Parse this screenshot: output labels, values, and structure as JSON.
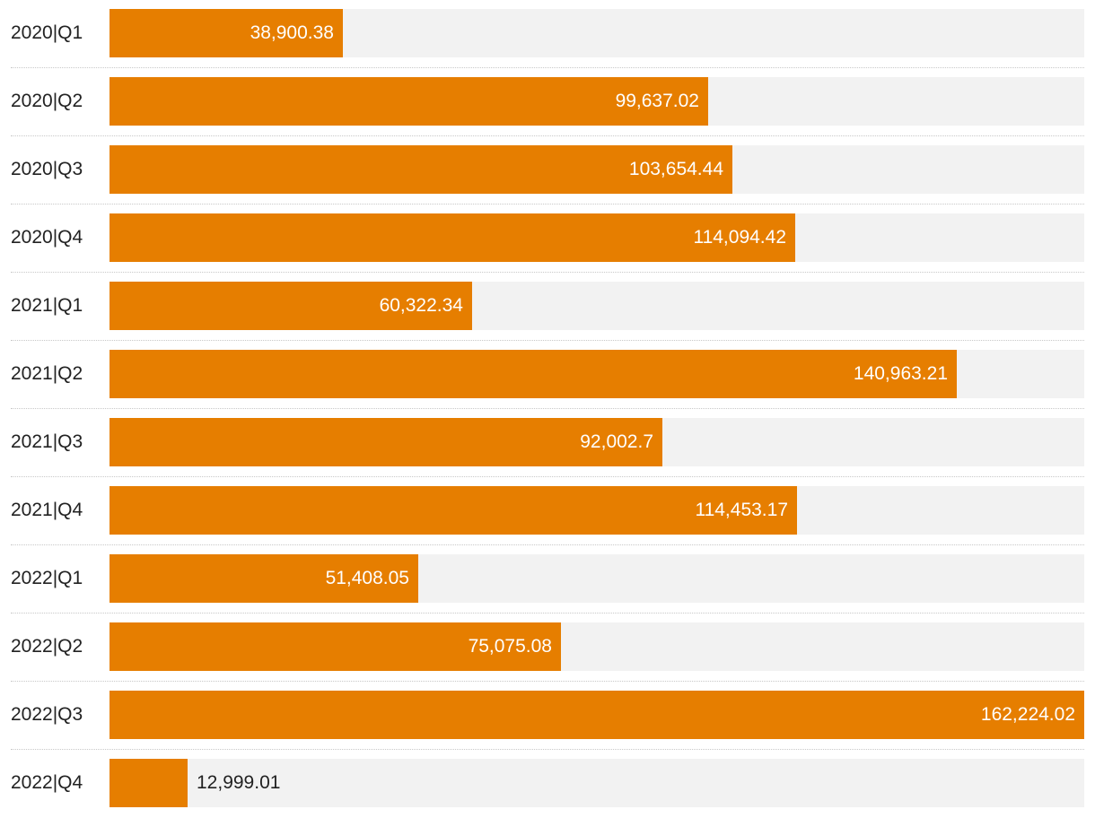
{
  "chart_data": {
    "type": "bar",
    "orientation": "horizontal",
    "categories": [
      "2020|Q1",
      "2020|Q2",
      "2020|Q3",
      "2020|Q4",
      "2021|Q1",
      "2021|Q2",
      "2021|Q3",
      "2021|Q4",
      "2022|Q1",
      "2022|Q2",
      "2022|Q3",
      "2022|Q4"
    ],
    "values": [
      38900.38,
      99637.02,
      103654.44,
      114094.42,
      60322.34,
      140963.21,
      92002.7,
      114453.17,
      51408.05,
      75075.08,
      162224.02,
      12999.01
    ],
    "value_labels": [
      "38,900.38",
      "99,637.02",
      "103,654.44",
      "114,094.42",
      "60,322.34",
      "140,963.21",
      "92,002.7",
      "114,453.17",
      "51,408.05",
      "75,075.08",
      "162,224.02",
      "12,999.01"
    ],
    "xlim": [
      0,
      162224.02
    ],
    "bar_color": "#e67e00",
    "track_color": "#f2f2f2",
    "title": "",
    "xlabel": "",
    "ylabel": "",
    "legend": "none",
    "grid": false
  }
}
